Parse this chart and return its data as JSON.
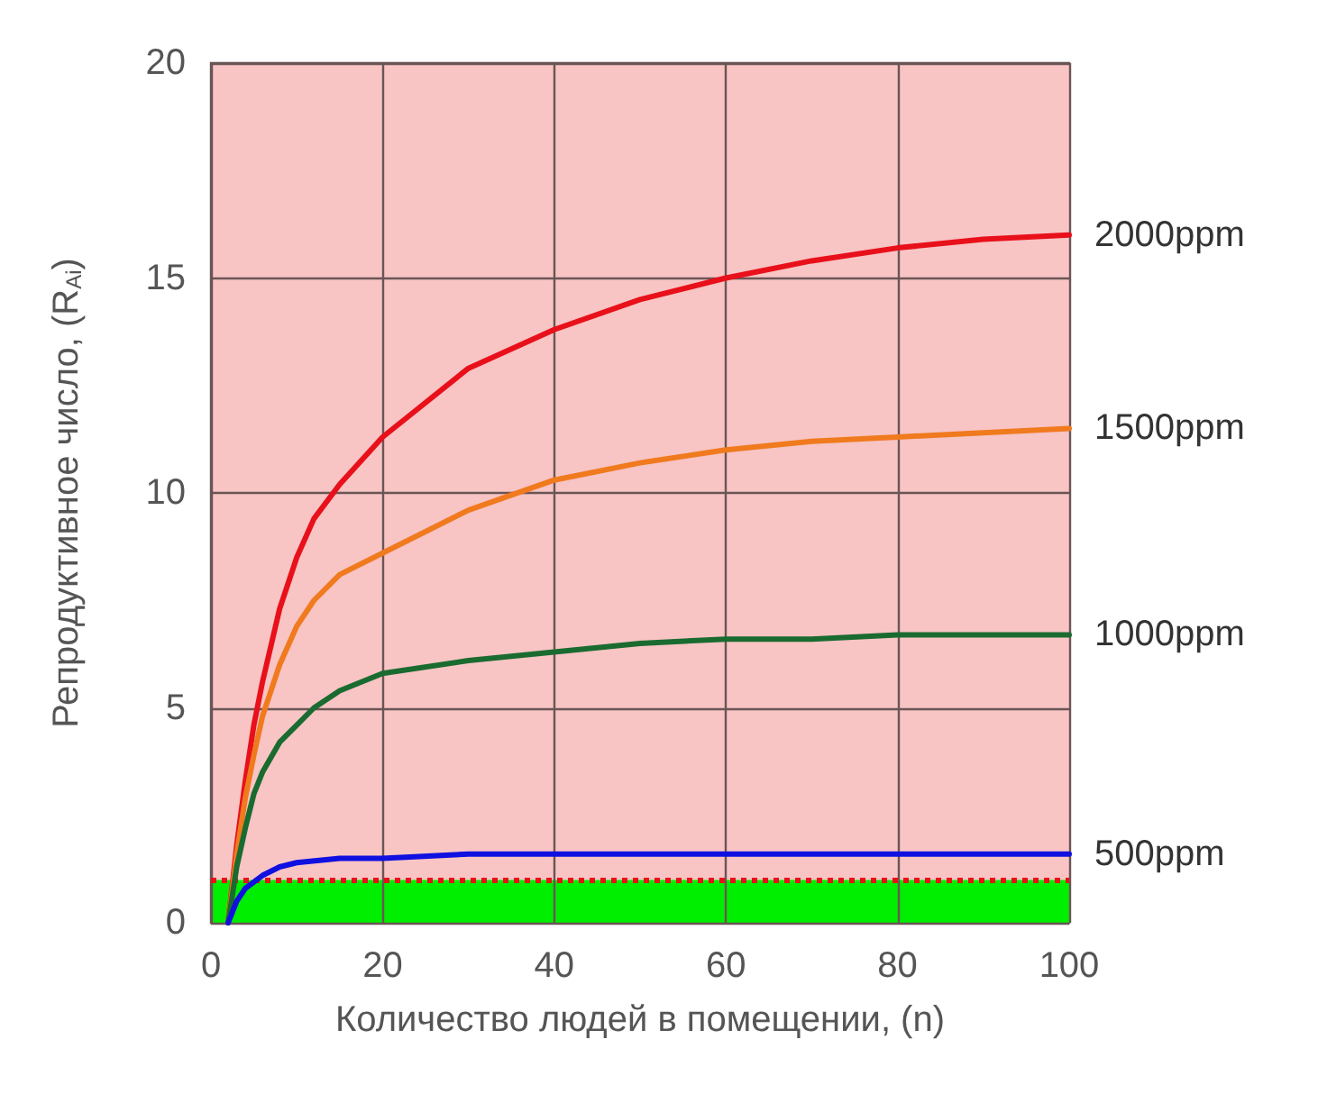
{
  "chart_data": {
    "type": "line",
    "xlabel": "Количество людей в помещении, (n)",
    "ylabel": "Репродуктивное число, (R$_{Ai}$)",
    "xlim": [
      0,
      100
    ],
    "xticks": [
      0,
      20,
      40,
      60,
      80,
      100
    ],
    "ylim": [
      0,
      20
    ],
    "yticks": [
      0,
      5,
      10,
      15,
      20
    ],
    "grid": true,
    "legend": false,
    "marker": "none",
    "line_style": "solid",
    "series": [
      {
        "name": "2000ppm",
        "color": "#e8101a",
        "x": [
          2,
          3,
          4,
          5,
          6,
          8,
          10,
          12,
          15,
          20,
          30,
          40,
          50,
          60,
          70,
          80,
          90,
          100
        ],
        "values": [
          0,
          1.8,
          3.3,
          4.6,
          5.6,
          7.3,
          8.5,
          9.4,
          10.2,
          11.3,
          12.9,
          13.8,
          14.5,
          15.0,
          15.4,
          15.7,
          15.9,
          16.0
        ]
      },
      {
        "name": "1500ppm",
        "color": "#f07a1e",
        "x": [
          2,
          3,
          4,
          5,
          6,
          8,
          10,
          12,
          15,
          20,
          30,
          40,
          50,
          60,
          70,
          80,
          90,
          100
        ],
        "values": [
          0,
          1.6,
          2.9,
          3.9,
          4.8,
          6.0,
          6.9,
          7.5,
          8.1,
          8.6,
          9.6,
          10.3,
          10.7,
          11.0,
          11.2,
          11.3,
          11.4,
          11.5
        ]
      },
      {
        "name": "1000ppm",
        "color": "#1a6b30",
        "x": [
          2,
          3,
          4,
          5,
          6,
          8,
          10,
          12,
          15,
          20,
          30,
          40,
          50,
          60,
          70,
          80,
          100
        ],
        "values": [
          0,
          1.3,
          2.2,
          3.0,
          3.5,
          4.2,
          4.6,
          5.0,
          5.4,
          5.8,
          6.1,
          6.3,
          6.5,
          6.6,
          6.6,
          6.7,
          6.7
        ]
      },
      {
        "name": "500ppm",
        "color": "#1010e0",
        "x": [
          2,
          3,
          4,
          6,
          8,
          10,
          15,
          20,
          30,
          40,
          60,
          100
        ],
        "values": [
          0,
          0.5,
          0.8,
          1.1,
          1.3,
          1.4,
          1.5,
          1.5,
          1.6,
          1.6,
          1.6,
          1.6
        ]
      }
    ],
    "bands": [
      {
        "axis": "y",
        "from": 0,
        "to": 1,
        "color": "#00ee00"
      },
      {
        "axis": "y",
        "from": 1,
        "to": 20,
        "color": "#f8c4c4"
      }
    ],
    "ref_lines": [
      {
        "axis": "y",
        "value": 1,
        "color": "#e8101a",
        "line_style": "dotted"
      }
    ]
  }
}
